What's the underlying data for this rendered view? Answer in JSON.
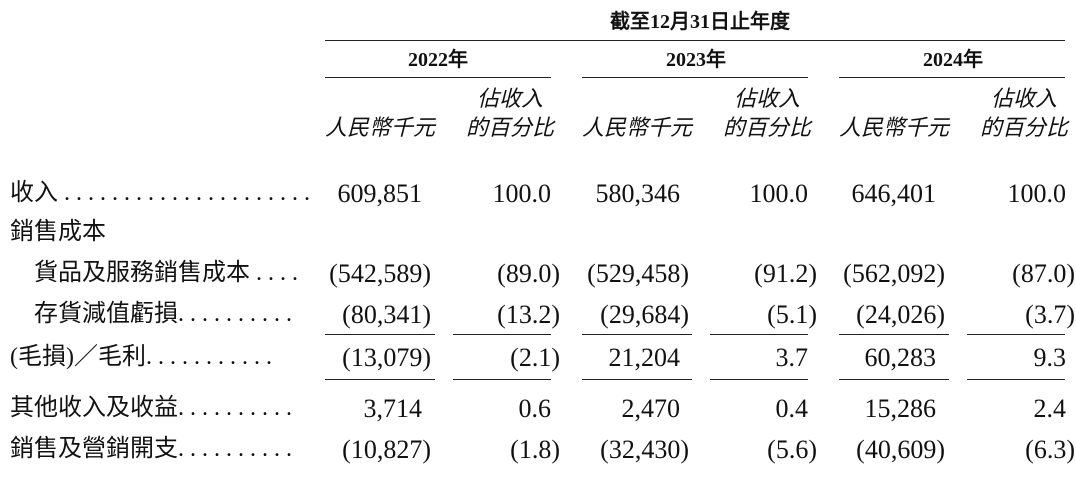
{
  "header": {
    "period": "截至12月31日止年度",
    "years": [
      "2022年",
      "2023年",
      "2024年"
    ],
    "unit_amount": "人民幣千元",
    "unit_pct_line1": "佔收入",
    "unit_pct_line2": "的百分比"
  },
  "rows": [
    {
      "label": "收入 . . . . . . . . . . . . . . . . . . . . .",
      "v": [
        "609,851",
        "100.0",
        "580,346",
        "100.0",
        "646,401",
        "100.0"
      ]
    },
    {
      "label": "銷售成本",
      "v": []
    },
    {
      "label": "貨品及服務銷售成本 . . . .",
      "v": [
        "(542,589)",
        "(89.0)",
        "(529,458)",
        "(91.2)",
        "(562,092)",
        "(87.0)"
      ]
    },
    {
      "label": "存貨減值虧損. . . . . . . . . .",
      "v": [
        "(80,341)",
        "(13.2)",
        "(29,684)",
        "(5.1)",
        "(24,026)",
        "(3.7)"
      ]
    },
    {
      "label": "(毛損)／毛利. . . . . . . . . . .",
      "v": [
        "(13,079)",
        "(2.1)",
        "21,204",
        "3.7",
        "60,283",
        "9.3"
      ]
    },
    {
      "label": "其他收入及收益. . . . . . . . . .",
      "v": [
        "3,714",
        "0.6",
        "2,470",
        "0.4",
        "15,286",
        "2.4"
      ]
    },
    {
      "label": "銷售及營銷開支. . . . . . . . . .",
      "v": [
        "(10,827)",
        "(1.8)",
        "(32,430)",
        "(5.6)",
        "(40,609)",
        "(6.3)"
      ]
    }
  ]
}
